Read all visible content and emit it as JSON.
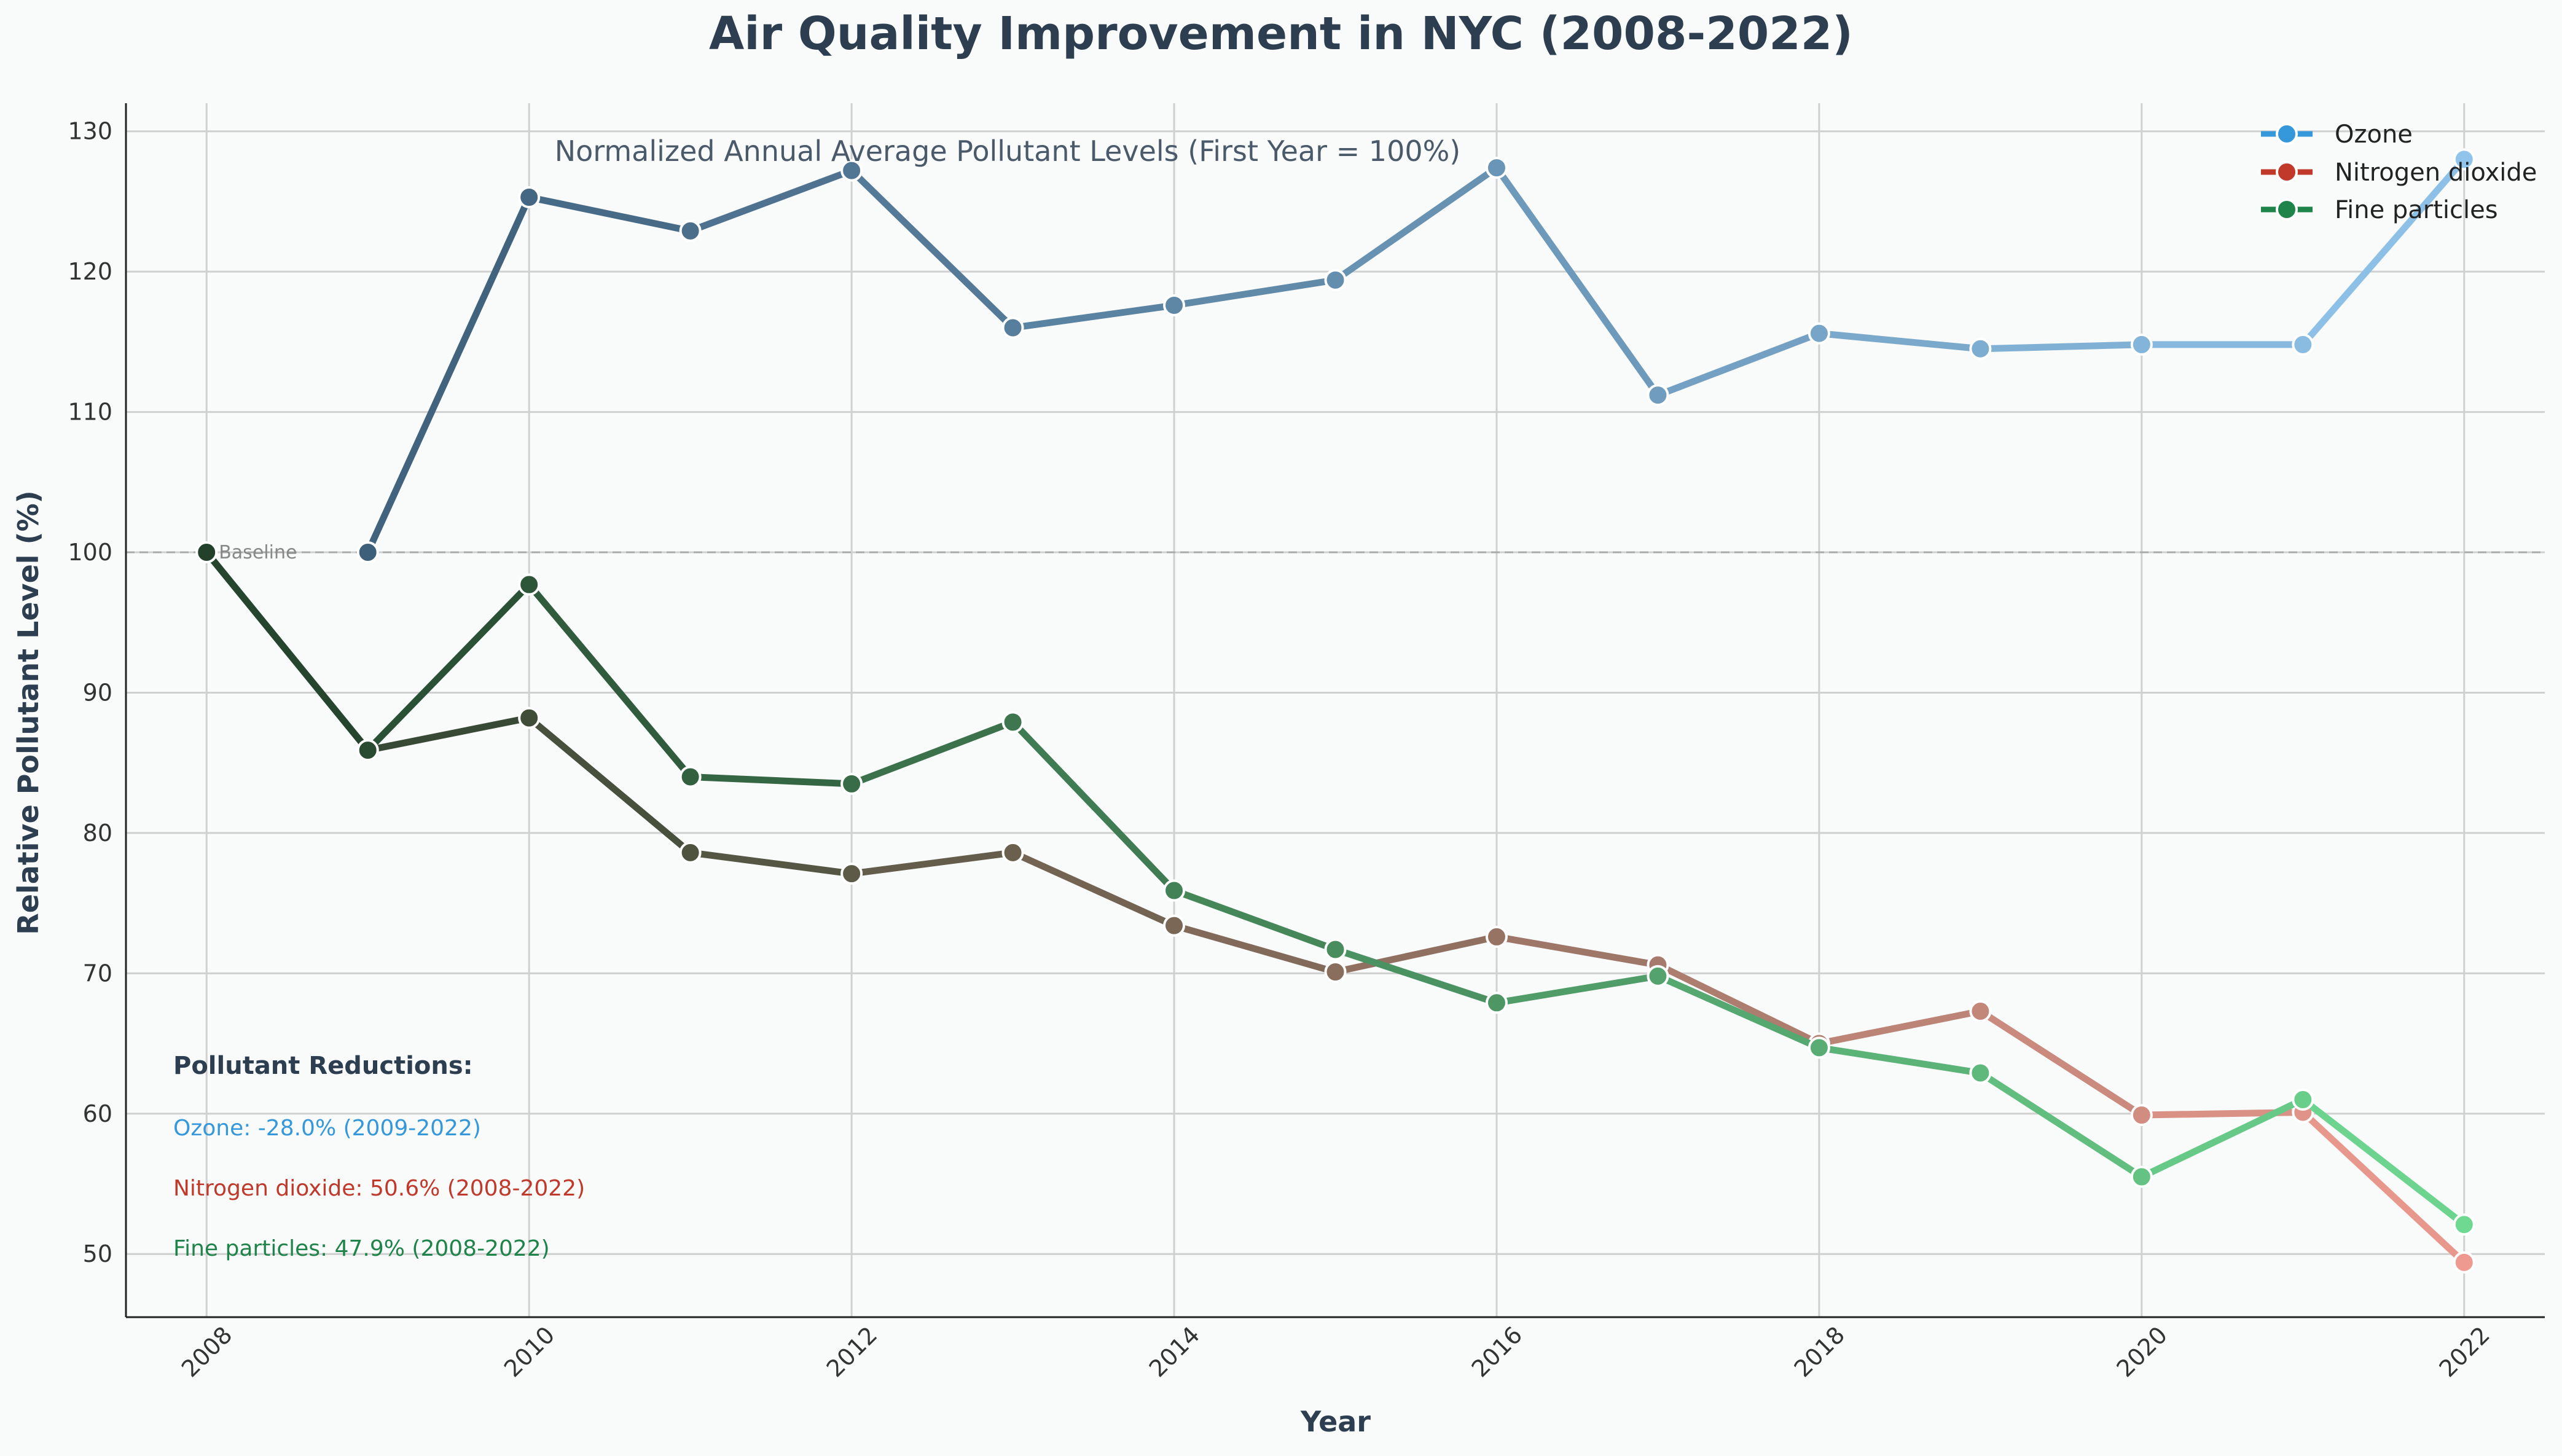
{
  "colors": {
    "background": "#f9fafa",
    "grid": "#d0d0d0",
    "axis": "#222222",
    "baseline": "#aaaaaa",
    "title": "#2c3e50"
  },
  "chart_data": {
    "type": "line",
    "title": "Air Quality Improvement in NYC (2008-2022)",
    "subtitle": "Normalized Annual Average Pollutant Levels (First Year = 100%)",
    "xlabel": "Year",
    "ylabel": "Relative Pollutant Level (%)",
    "xlim": [
      2007.5,
      2022.5
    ],
    "ylim": [
      45.5,
      132
    ],
    "grid": true,
    "legend_position": "top-right",
    "x_ticks": [
      2008,
      2010,
      2012,
      2014,
      2016,
      2018,
      2020,
      2022
    ],
    "y_ticks": [
      50,
      60,
      70,
      80,
      90,
      100,
      110,
      120,
      130
    ],
    "baseline": {
      "value": 100,
      "label": "Baseline"
    },
    "series": [
      {
        "name": "Ozone",
        "start_color": "#3e5f7a",
        "end_color": "#90c4ea",
        "marker_color": "#3498db",
        "x": [
          2009,
          2010,
          2011,
          2012,
          2013,
          2014,
          2015,
          2016,
          2017,
          2018,
          2019,
          2020,
          2021,
          2022
        ],
        "y": [
          100,
          125.3,
          122.9,
          127.2,
          116.0,
          117.6,
          119.4,
          127.4,
          111.2,
          115.6,
          114.5,
          114.8,
          114.8,
          128.0
        ]
      },
      {
        "name": "Nitrogen dioxide",
        "start_color": "#22402a",
        "end_color": "#ef9a90",
        "marker_color": "#c0392b",
        "x": [
          2008,
          2009,
          2010,
          2011,
          2012,
          2013,
          2014,
          2015,
          2016,
          2017,
          2018,
          2019,
          2020,
          2021,
          2022
        ],
        "y": [
          100,
          85.9,
          88.2,
          78.6,
          77.1,
          78.6,
          73.4,
          70.1,
          72.6,
          70.6,
          65.0,
          67.3,
          59.9,
          60.1,
          49.4
        ]
      },
      {
        "name": "Fine particles",
        "start_color": "#22402a",
        "end_color": "#6fd992",
        "marker_color": "#1e8449",
        "x": [
          2008,
          2009,
          2010,
          2011,
          2012,
          2013,
          2014,
          2015,
          2016,
          2017,
          2018,
          2019,
          2020,
          2021,
          2022
        ],
        "y": [
          100,
          85.9,
          97.7,
          84.0,
          83.5,
          87.9,
          75.9,
          71.7,
          67.9,
          69.8,
          64.7,
          62.9,
          55.5,
          61.0,
          52.1
        ]
      }
    ],
    "annotations": {
      "heading": "Pollutant Reductions:",
      "lines": [
        {
          "text": "Ozone: -28.0% (2009-2022)",
          "color": "#3498db"
        },
        {
          "text": "Nitrogen dioxide: 50.6% (2008-2022)",
          "color": "#c0392b"
        },
        {
          "text": "Fine particles: 47.9% (2008-2022)",
          "color": "#1e8449"
        }
      ]
    }
  }
}
